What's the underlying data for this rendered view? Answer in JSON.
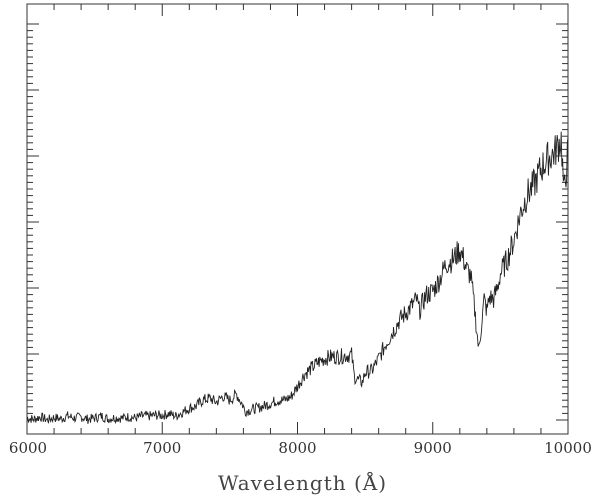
{
  "chart_data": {
    "type": "line",
    "title": "",
    "xlabel": "Wavelength (Å)",
    "ylabel": "",
    "xlim": [
      6000,
      10000
    ],
    "ylim": [
      0,
      10
    ],
    "grid": false,
    "x_ticks": [
      6000,
      7000,
      8000,
      9000,
      10000
    ],
    "x_tick_labels": [
      "6000",
      "7000",
      "8000",
      "9000",
      "10000"
    ],
    "y_major_ticks": [
      0,
      1,
      2,
      3,
      4,
      5,
      6,
      7,
      8,
      9,
      10
    ],
    "series": [
      {
        "x": [
          6000,
          6050,
          6100,
          6150,
          6200,
          6250,
          6300,
          6350,
          6400,
          6450,
          6500,
          6550,
          6600,
          6650,
          6700,
          6750,
          6800,
          6850,
          6900,
          6950,
          7000,
          7050,
          7100,
          7150,
          7200,
          7250,
          7300,
          7350,
          7400,
          7450,
          7500,
          7550,
          7600,
          7610,
          7650,
          7700,
          7750,
          7800,
          7850,
          7900,
          7950,
          8000,
          8050,
          8100,
          8150,
          8200,
          8250,
          8300,
          8350,
          8400,
          8420,
          8450,
          8480,
          8500,
          8550,
          8600,
          8650,
          8700,
          8750,
          8800,
          8850,
          8880,
          8900,
          8950,
          9000,
          9050,
          9100,
          9150,
          9200,
          9230,
          9250,
          9280,
          9300,
          9320,
          9340,
          9360,
          9380,
          9400,
          9420,
          9450,
          9480,
          9500,
          9550,
          9600,
          9650,
          9700,
          9750,
          9800,
          9850,
          9900,
          9950,
          9970,
          10000
        ],
        "y": [
          0.05,
          0.02,
          0.08,
          0.0,
          0.06,
          0.03,
          0.1,
          0.05,
          0.08,
          0.02,
          0.05,
          0.1,
          0.03,
          0.06,
          0.05,
          0.08,
          0.05,
          0.1,
          0.1,
          0.12,
          0.12,
          0.16,
          0.1,
          0.2,
          0.3,
          0.35,
          0.5,
          0.55,
          0.45,
          0.6,
          0.5,
          0.65,
          0.35,
          0.22,
          0.25,
          0.3,
          0.35,
          0.42,
          0.5,
          0.5,
          0.58,
          0.85,
          1.15,
          1.3,
          1.45,
          1.55,
          1.6,
          1.6,
          1.62,
          1.65,
          1.1,
          1.0,
          0.95,
          1.2,
          1.25,
          1.55,
          1.9,
          2.2,
          2.5,
          2.7,
          2.9,
          3.05,
          2.75,
          3.15,
          3.25,
          3.55,
          3.95,
          4.05,
          4.3,
          4.05,
          3.8,
          3.65,
          3.1,
          2.45,
          1.75,
          2.4,
          3.05,
          2.75,
          3.1,
          3.05,
          3.35,
          3.7,
          4.05,
          4.55,
          5.25,
          5.7,
          5.95,
          6.35,
          6.6,
          6.75,
          7.1,
          5.7,
          6.8
        ]
      }
    ]
  }
}
